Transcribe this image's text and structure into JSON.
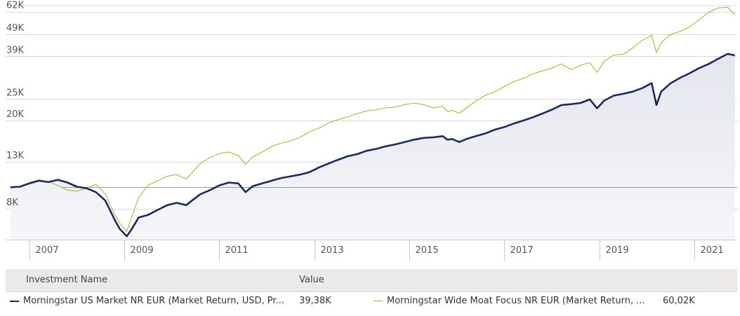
{
  "chart_data": {
    "type": "line",
    "title": "",
    "xlabel": "",
    "ylabel": "",
    "y_scale": "log",
    "ylim": [
      5800,
      68000
    ],
    "xlim": [
      2006.4,
      2021.8
    ],
    "y_ticks": [
      {
        "value": 8000,
        "label": "8K"
      },
      {
        "value": 13000,
        "label": "13K"
      },
      {
        "value": 20000,
        "label": "20K"
      },
      {
        "value": 25000,
        "label": "25K"
      },
      {
        "value": 39000,
        "label": "39K"
      },
      {
        "value": 49000,
        "label": "49K"
      },
      {
        "value": 62000,
        "label": "62K"
      }
    ],
    "baseline": 10000,
    "x_ticks": [
      {
        "value": 2007,
        "label": "2007"
      },
      {
        "value": 2009,
        "label": "2009"
      },
      {
        "value": 2011,
        "label": "2011"
      },
      {
        "value": 2013,
        "label": "2013"
      },
      {
        "value": 2015,
        "label": "2015"
      },
      {
        "value": 2017,
        "label": "2017"
      },
      {
        "value": 2019,
        "label": "2019"
      },
      {
        "value": 2021,
        "label": "2021"
      }
    ],
    "series": [
      {
        "name": "Morningstar US Market NR EUR (Market Return, USD, Pr...",
        "color": "#1b2a5e",
        "fill": true,
        "x": [
          2006.5,
          2006.7,
          2006.9,
          2007.1,
          2007.3,
          2007.5,
          2007.7,
          2007.9,
          2008.1,
          2008.3,
          2008.5,
          2008.7,
          2008.8,
          2008.95,
          2009.05,
          2009.2,
          2009.4,
          2009.6,
          2009.8,
          2010.0,
          2010.2,
          2010.35,
          2010.5,
          2010.7,
          2010.9,
          2011.1,
          2011.3,
          2011.45,
          2011.6,
          2011.8,
          2012.0,
          2012.2,
          2012.4,
          2012.6,
          2012.8,
          2013.0,
          2013.2,
          2013.4,
          2013.6,
          2013.8,
          2014.0,
          2014.2,
          2014.4,
          2014.6,
          2014.8,
          2015.0,
          2015.2,
          2015.4,
          2015.6,
          2015.7,
          2015.8,
          2015.95,
          2016.1,
          2016.3,
          2016.5,
          2016.7,
          2016.9,
          2017.1,
          2017.3,
          2017.5,
          2017.7,
          2017.9,
          2018.1,
          2018.3,
          2018.5,
          2018.7,
          2018.85,
          2019.0,
          2019.2,
          2019.4,
          2019.6,
          2019.8,
          2020.0,
          2020.1,
          2020.2,
          2020.4,
          2020.6,
          2020.8,
          2021.0,
          2021.2,
          2021.4,
          2021.6,
          2021.75
        ],
        "values": [
          10000,
          10050,
          10400,
          10700,
          10550,
          10800,
          10500,
          10050,
          9900,
          9500,
          8700,
          7100,
          6500,
          6000,
          6450,
          7300,
          7500,
          7900,
          8300,
          8500,
          8300,
          8800,
          9300,
          9700,
          10200,
          10500,
          10400,
          9500,
          10100,
          10400,
          10700,
          11000,
          11200,
          11400,
          11700,
          12300,
          12800,
          13300,
          13800,
          14100,
          14600,
          14900,
          15300,
          15600,
          16000,
          16400,
          16700,
          16800,
          17000,
          16400,
          16500,
          16000,
          16500,
          17000,
          17500,
          18200,
          18700,
          19400,
          20000,
          20700,
          21500,
          22400,
          23500,
          23700,
          24000,
          24900,
          22700,
          24600,
          25900,
          26400,
          27000,
          28000,
          29500,
          23500,
          27000,
          29500,
          31200,
          32700,
          34500,
          36000,
          38000,
          40000,
          39380
        ]
      },
      {
        "name": "Morningstar Wide Moat Focus NR EUR (Market Return, ...",
        "color": "#a7b835",
        "fill": false,
        "x": [
          2006.5,
          2006.7,
          2006.9,
          2007.1,
          2007.3,
          2007.5,
          2007.7,
          2007.9,
          2008.1,
          2008.3,
          2008.5,
          2008.7,
          2008.8,
          2008.95,
          2009.05,
          2009.2,
          2009.4,
          2009.6,
          2009.8,
          2010.0,
          2010.2,
          2010.35,
          2010.5,
          2010.7,
          2010.9,
          2011.1,
          2011.3,
          2011.45,
          2011.6,
          2011.8,
          2012.0,
          2012.2,
          2012.4,
          2012.6,
          2012.8,
          2013.0,
          2013.2,
          2013.4,
          2013.6,
          2013.8,
          2014.0,
          2014.2,
          2014.4,
          2014.6,
          2014.8,
          2015.0,
          2015.2,
          2015.4,
          2015.6,
          2015.7,
          2015.8,
          2015.95,
          2016.1,
          2016.3,
          2016.5,
          2016.7,
          2016.9,
          2017.1,
          2017.3,
          2017.5,
          2017.7,
          2017.9,
          2018.1,
          2018.3,
          2018.5,
          2018.7,
          2018.85,
          2019.0,
          2019.2,
          2019.4,
          2019.6,
          2019.8,
          2020.0,
          2020.1,
          2020.2,
          2020.4,
          2020.6,
          2020.8,
          2021.0,
          2021.2,
          2021.4,
          2021.6,
          2021.75
        ],
        "values": [
          10000,
          10100,
          10500,
          10800,
          10600,
          10200,
          9700,
          9600,
          9900,
          10300,
          9300,
          7500,
          6900,
          6300,
          7300,
          9000,
          10200,
          10700,
          11200,
          11400,
          10900,
          11800,
          12800,
          13600,
          14200,
          14400,
          13900,
          12700,
          13700,
          14400,
          15300,
          15800,
          16200,
          16800,
          17800,
          18500,
          19500,
          20200,
          20800,
          21500,
          22100,
          22400,
          22800,
          23000,
          23600,
          24000,
          23600,
          22800,
          23200,
          22000,
          22200,
          21600,
          22800,
          24500,
          26000,
          27000,
          28500,
          30000,
          31000,
          32500,
          33500,
          34500,
          36000,
          34000,
          35500,
          36500,
          33000,
          37000,
          39500,
          39800,
          42500,
          46000,
          48500,
          40500,
          45000,
          49000,
          50500,
          53000,
          57000,
          61500,
          64500,
          65000,
          60020
        ]
      }
    ]
  },
  "legend": {
    "header_name": "Investment Name",
    "header_value": "Value",
    "entries": [
      {
        "name": "Morningstar US Market NR EUR (Market Return, USD, Pr...",
        "value": "39,38K",
        "color": "#1b2a5e"
      },
      {
        "name": "Morningstar Wide Moat Focus NR EUR (Market Return, ...",
        "value": "60,02K",
        "color": "#a7b835"
      }
    ]
  }
}
